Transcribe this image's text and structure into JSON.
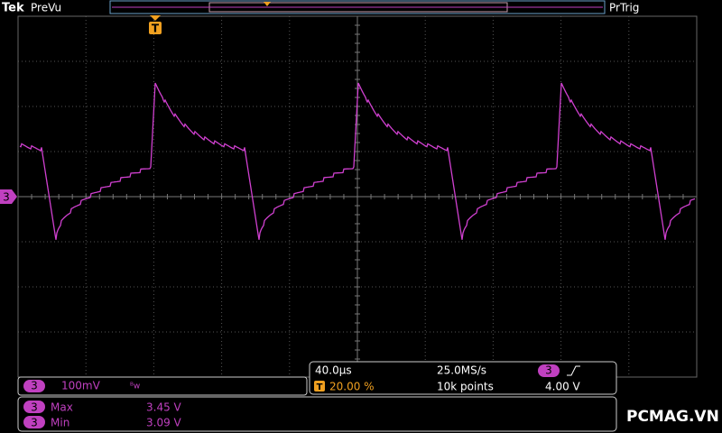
{
  "header": {
    "brand": "Tek",
    "mode": "PreVu",
    "trigger_status": "PrTrig",
    "trigger_marker": "T"
  },
  "channel_marker": "3",
  "channel_box": {
    "channel": "3",
    "scale": "100mV",
    "bandwidth": "ᴮw"
  },
  "timebase": {
    "scale": "40.0µs",
    "sample_rate": "25.0MS/s",
    "trigger_channel": "3",
    "trigger_level": "4.00 V",
    "trigger_icon": "T",
    "trigger_position": "20.00 %",
    "record_length": "10k points"
  },
  "measurements": [
    {
      "channel": "3",
      "name": "Max",
      "value": "3.45 V"
    },
    {
      "channel": "3",
      "name": "Min",
      "value": "3.09 V"
    }
  ],
  "watermark": "PCMAG.VN"
}
